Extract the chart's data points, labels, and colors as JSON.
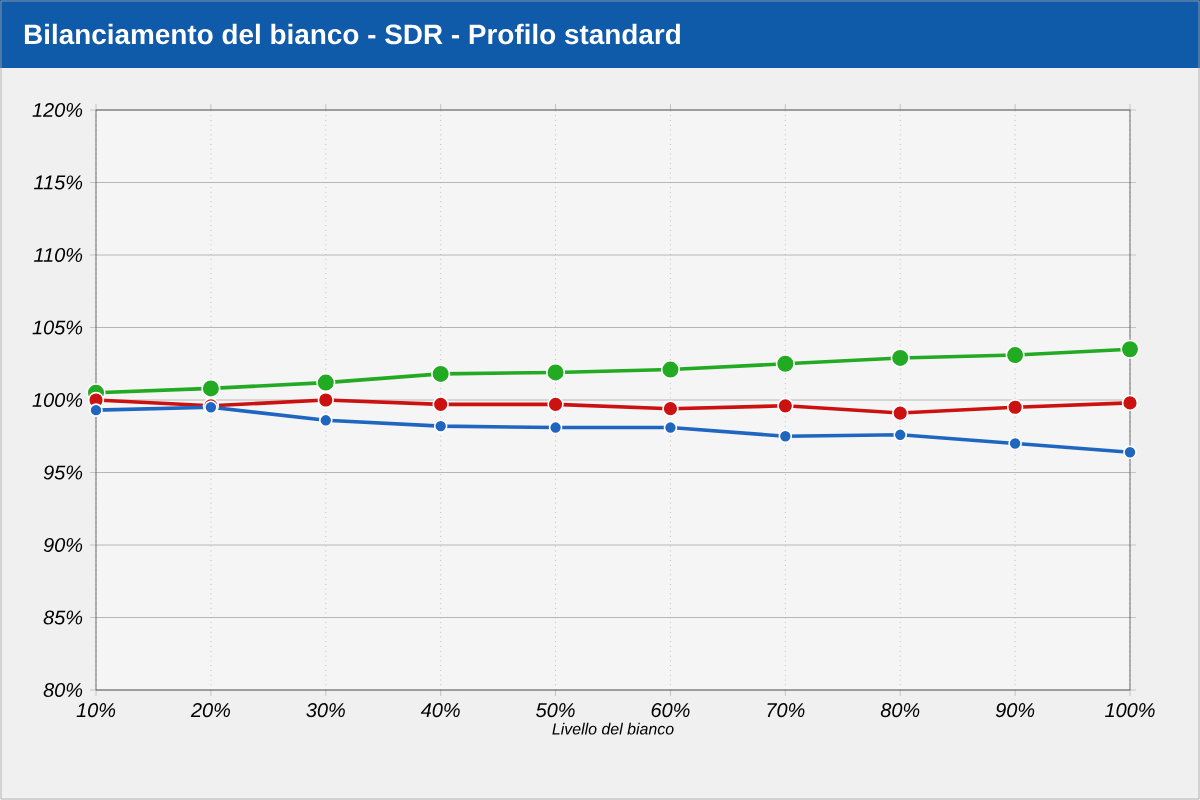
{
  "chart_data": {
    "type": "line",
    "title": "Bilanciamento del bianco - SDR - Profilo standard",
    "xlabel": "Livello del bianco",
    "categories": [
      "10%",
      "20%",
      "30%",
      "40%",
      "50%",
      "60%",
      "70%",
      "80%",
      "90%",
      "100%"
    ],
    "series": [
      {
        "color": "#22aa22",
        "values": [
          100.5,
          100.8,
          101.2,
          101.8,
          101.9,
          102.1,
          102.5,
          102.9,
          103.1,
          103.5
        ]
      },
      {
        "color": "#cc1111",
        "values": [
          100.0,
          99.6,
          100.0,
          99.7,
          99.7,
          99.4,
          99.6,
          99.1,
          99.5,
          99.8
        ]
      },
      {
        "color": "#1f66c0",
        "values": [
          99.3,
          99.5,
          98.6,
          98.2,
          98.1,
          98.1,
          97.5,
          97.6,
          97.0,
          96.4
        ]
      }
    ],
    "ylim": [
      80,
      120
    ],
    "yticks": [
      {
        "value": 80,
        "label": "80%"
      },
      {
        "value": 85,
        "label": "85%"
      },
      {
        "value": 90,
        "label": "90%"
      },
      {
        "value": 95,
        "label": "95%"
      },
      {
        "value": 100,
        "label": "100%"
      },
      {
        "value": 105,
        "label": "105%"
      },
      {
        "value": 110,
        "label": "110%"
      },
      {
        "value": 115,
        "label": "115%"
      },
      {
        "value": 120,
        "label": "120%"
      }
    ],
    "grid": true,
    "marker": "circle",
    "line_style": "solid"
  }
}
